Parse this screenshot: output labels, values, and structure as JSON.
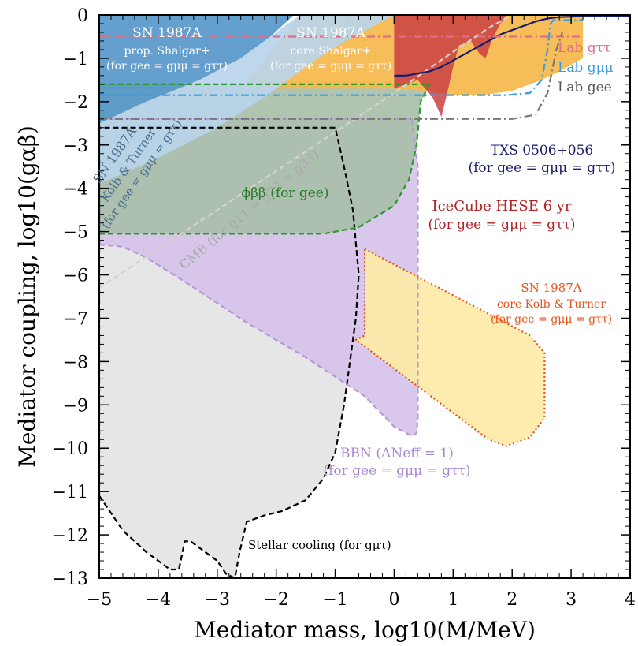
{
  "chart_data": {
    "type": "area",
    "xlabel": "Mediator mass, log10(M/MeV)",
    "ylabel": "Mediator coupling, log10(gαβ)",
    "xlim": [
      -5,
      4
    ],
    "ylim": [
      -13,
      0
    ],
    "xticks": [
      -5,
      -4,
      -3,
      -2,
      -1,
      0,
      1,
      2,
      3,
      4
    ],
    "yticks": [
      0,
      -1,
      -2,
      -3,
      -4,
      -5,
      -6,
      -7,
      -8,
      -9,
      -10,
      -11,
      -12,
      -13
    ],
    "xtick_labels": [
      "−5",
      "−4",
      "−3",
      "−2",
      "−1",
      "0",
      "1",
      "2",
      "3",
      "4"
    ],
    "ytick_labels": [
      "0",
      "−1",
      "−2",
      "−3",
      "−4",
      "−5",
      "−6",
      "−7",
      "−8",
      "−9",
      "−10",
      "−11",
      "−12",
      "−13"
    ],
    "regions": [
      {
        "name": "stellar",
        "color": "#e4e4e4",
        "edge": "#000000",
        "dash": "dashed",
        "points": [
          [
            -5,
            -11.1
          ],
          [
            -4.6,
            -11.9
          ],
          [
            -4.2,
            -12.4
          ],
          [
            -3.8,
            -12.8
          ],
          [
            -3.65,
            -12.8
          ],
          [
            -3.55,
            -12.15
          ],
          [
            -3.45,
            -12.15
          ],
          [
            -3.3,
            -12.3
          ],
          [
            -3.0,
            -12.6
          ],
          [
            -2.85,
            -12.9
          ],
          [
            -2.7,
            -13
          ],
          [
            -2.62,
            -12.4
          ],
          [
            -2.5,
            -11.7
          ],
          [
            -2.2,
            -11.55
          ],
          [
            -1.9,
            -11.45
          ],
          [
            -1.5,
            -11.2
          ],
          [
            -1.2,
            -10.7
          ],
          [
            -1.0,
            -10.1
          ],
          [
            -0.85,
            -9.0
          ],
          [
            -0.75,
            -8.0
          ],
          [
            -0.65,
            -7.0
          ],
          [
            -0.6,
            -6.0
          ],
          [
            -0.7,
            -4.5
          ],
          [
            -0.85,
            -3.5
          ],
          [
            -1.0,
            -2.6
          ],
          [
            -5,
            -2.6
          ]
        ]
      },
      {
        "name": "bbn",
        "color": "#d7c3ea",
        "edge": "#b598d9",
        "dash": "dashed",
        "points": [
          [
            -5,
            -5.3
          ],
          [
            -4.6,
            -5.35
          ],
          [
            -4.2,
            -5.6
          ],
          [
            -3.5,
            -6.2
          ],
          [
            -2.5,
            -7.1
          ],
          [
            -1.5,
            -7.9
          ],
          [
            -0.5,
            -8.8
          ],
          [
            0.0,
            -9.5
          ],
          [
            0.3,
            -9.72
          ],
          [
            0.38,
            -9.65
          ],
          [
            0.4,
            -9.3
          ],
          [
            0.4,
            -3.5
          ],
          [
            0.3,
            -2.4
          ],
          [
            -5,
            -2.4
          ]
        ]
      },
      {
        "name": "phibb",
        "color": "#a9bfa9",
        "edge": "#2a9a2a",
        "dash": "dashed",
        "points": [
          [
            -5,
            -5.05
          ],
          [
            -1.2,
            -5.05
          ],
          [
            -0.6,
            -4.9
          ],
          [
            0.0,
            -4.4
          ],
          [
            0.25,
            -3.8
          ],
          [
            0.38,
            -3.0
          ],
          [
            0.45,
            -2.0
          ],
          [
            0.6,
            -1.6
          ],
          [
            -5,
            -1.6
          ]
        ]
      },
      {
        "name": "sn_core_kt",
        "color": "#fdeaa6",
        "edge": "#e8531c",
        "dash": "dotted",
        "points": [
          [
            -0.5,
            -5.4
          ],
          [
            2.3,
            -7.4
          ],
          [
            2.55,
            -7.8
          ],
          [
            2.55,
            -9.3
          ],
          [
            2.3,
            -9.75
          ],
          [
            1.9,
            -9.95
          ],
          [
            1.6,
            -9.8
          ],
          [
            -0.65,
            -7.5
          ],
          [
            -0.5,
            -7.4
          ]
        ]
      },
      {
        "name": "sn_core_shalgar",
        "color": "#f6b74a",
        "points": [
          [
            -2.6,
            -1.7
          ],
          [
            0.0,
            -1.7
          ],
          [
            0.5,
            -1.75
          ],
          [
            1.0,
            -1.85
          ],
          [
            1.5,
            -1.85
          ],
          [
            2.0,
            -1.75
          ],
          [
            2.5,
            -1.5
          ],
          [
            2.8,
            -1.3
          ],
          [
            3.2,
            -1.0
          ],
          [
            3.2,
            0
          ],
          [
            -1.6,
            0
          ]
        ]
      },
      {
        "name": "sn_prop_shalgar",
        "color": "#5797c9",
        "points": [
          [
            -5,
            -2.5
          ],
          [
            -4.2,
            -2.0
          ],
          [
            -3.3,
            -1.5
          ],
          [
            -2.6,
            -1.0
          ],
          [
            -2.1,
            -0.5
          ],
          [
            -1.7,
            0
          ],
          [
            -5,
            0
          ]
        ]
      },
      {
        "name": "sn_kt_light",
        "color": "#b9d4ea",
        "points": [
          [
            -5,
            -3.9
          ],
          [
            -4.0,
            -3.3
          ],
          [
            -3.0,
            -2.6
          ],
          [
            -2.2,
            -1.9
          ],
          [
            -1.5,
            -1.2
          ],
          [
            -0.9,
            -0.65
          ],
          [
            -0.4,
            -0.3
          ],
          [
            0.0,
            0
          ],
          [
            -1.6,
            0
          ],
          [
            -2.6,
            -1.0
          ],
          [
            -3.3,
            -1.5
          ],
          [
            -4.2,
            -2.0
          ],
          [
            -5,
            -2.5
          ]
        ]
      },
      {
        "name": "icecube",
        "color": "#c94143",
        "points": [
          [
            0.0,
            0
          ],
          [
            0.0,
            -1.7
          ],
          [
            0.4,
            -1.5
          ],
          [
            0.65,
            -1.9
          ],
          [
            0.8,
            -2.35
          ],
          [
            0.9,
            -1.8
          ],
          [
            1.0,
            -1.2
          ],
          [
            1.1,
            -0.7
          ],
          [
            1.3,
            -0.6
          ],
          [
            1.45,
            -0.9
          ],
          [
            1.55,
            -1.0
          ],
          [
            1.65,
            -0.6
          ],
          [
            1.8,
            -0.2
          ],
          [
            1.9,
            0
          ]
        ]
      }
    ],
    "lines": [
      {
        "name": "CMB",
        "color": "#d8d0d0",
        "dash": "dashed",
        "points": [
          [
            -5,
            -6.3
          ],
          [
            -4,
            -5.4
          ],
          [
            -3,
            -4.5
          ],
          [
            -2,
            -3.6
          ],
          [
            -1,
            -2.7
          ],
          [
            0,
            -1.8
          ],
          [
            1,
            -0.85
          ],
          [
            1.6,
            -0.3
          ],
          [
            2.0,
            0
          ]
        ]
      },
      {
        "name": "TXS",
        "color": "#1a1f6d",
        "dash": "solid",
        "points": [
          [
            0.0,
            -1.4
          ],
          [
            0.2,
            -1.4
          ],
          [
            0.4,
            -1.35
          ],
          [
            0.6,
            -1.3
          ],
          [
            0.8,
            -1.2
          ],
          [
            1.0,
            -1.05
          ],
          [
            1.2,
            -0.9
          ],
          [
            1.4,
            -0.75
          ],
          [
            1.6,
            -0.6
          ],
          [
            1.8,
            -0.45
          ],
          [
            2.0,
            -0.35
          ],
          [
            2.2,
            -0.25
          ],
          [
            2.4,
            -0.15
          ],
          [
            2.6,
            -0.08
          ],
          [
            2.8,
            -0.05
          ],
          [
            3.2,
            -0.03
          ],
          [
            4,
            -0.03
          ]
        ]
      },
      {
        "name": "lab_gtt",
        "color": "#e36b8a",
        "dash": "dashdot",
        "points": [
          [
            -5,
            -0.5
          ],
          [
            3.2,
            -0.5
          ]
        ]
      },
      {
        "name": "lab_gmm",
        "color": "#3a9de0",
        "dash": "dashdot",
        "points": [
          [
            -5,
            -1.85
          ],
          [
            1.9,
            -1.85
          ],
          [
            2.3,
            -1.8
          ],
          [
            2.5,
            -1.5
          ],
          [
            2.6,
            -0.8
          ],
          [
            2.65,
            -0.2
          ],
          [
            2.7,
            -0.12
          ],
          [
            3.2,
            -0.12
          ]
        ]
      },
      {
        "name": "lab_gee",
        "color": "#777777",
        "dash": "dashdot",
        "points": [
          [
            -5,
            -2.4
          ],
          [
            2.0,
            -2.4
          ],
          [
            2.4,
            -2.3
          ],
          [
            2.6,
            -1.8
          ],
          [
            2.75,
            -0.8
          ],
          [
            2.85,
            -0.4
          ]
        ]
      }
    ],
    "annotations": [
      {
        "name": "sn-prop-shalgar",
        "color": "#ffffff",
        "lines": [
          "SN 1987A",
          "prop. Shalgar+",
          "(for gee = gμμ = gττ)"
        ]
      },
      {
        "name": "sn-core-shalgar",
        "color": "#ffffff",
        "lines": [
          "SN 1987A",
          "core Shalgar+",
          "(for gee = gμμ = gττ)"
        ]
      },
      {
        "name": "sn-kolb-turner",
        "color": "#4a6f8f",
        "lines": [
          "SN 1987A",
          "Kolb & Turner",
          "(for gee = gμμ = gττ)"
        ]
      },
      {
        "name": "cmb",
        "color": "#a9a9a9",
        "lines": [
          "CMB (for g11 = g22 = g33)"
        ]
      },
      {
        "name": "phibb",
        "color": "#2a7a2a",
        "lines": [
          "ϕββ (for gee)"
        ]
      },
      {
        "name": "txs",
        "color": "#1a1f6d",
        "lines": [
          "TXS 0506+056",
          "(for gee = gμμ = gττ)"
        ]
      },
      {
        "name": "icecube",
        "color": "#b22224",
        "lines": [
          "IceCube HESE 6 yr",
          "(for gee = gμμ = gττ)"
        ]
      },
      {
        "name": "sn-core-kt",
        "color": "#e8531c",
        "lines": [
          "SN 1987A",
          "core Kolb & Turner",
          "(for gee = gμμ = gττ)"
        ]
      },
      {
        "name": "bbn",
        "color": "#a98ad0",
        "lines": [
          "BBN (ΔNeff = 1)",
          "(for gee = gμμ = gττ)"
        ]
      },
      {
        "name": "stellar",
        "color": "#000000",
        "lines": [
          "Stellar cooling (for gμτ)"
        ]
      },
      {
        "name": "lab-gtt",
        "color": "#e36b8a",
        "lines": [
          "Lab gττ"
        ]
      },
      {
        "name": "lab-gmm",
        "color": "#3a9de0",
        "lines": [
          "Lab gμμ"
        ]
      },
      {
        "name": "lab-gee",
        "color": "#555555",
        "lines": [
          "Lab gee"
        ]
      }
    ]
  }
}
